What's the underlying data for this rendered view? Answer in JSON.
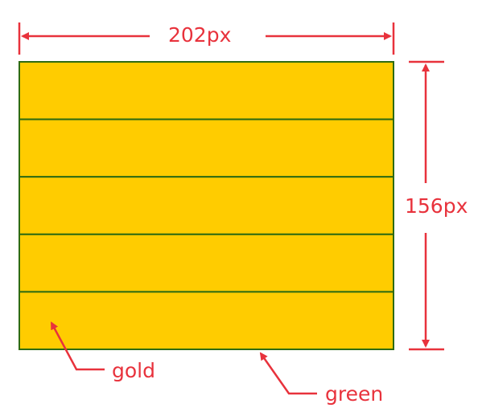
{
  "dimensions": {
    "width_label": "202px",
    "height_label": "156px"
  },
  "callouts": {
    "fill_label": "gold",
    "border_label": "green"
  },
  "box": {
    "row_count": 5
  },
  "colors": {
    "fill": "#FFCC00",
    "border": "#2E6B12",
    "annotation": "#E8323C"
  }
}
